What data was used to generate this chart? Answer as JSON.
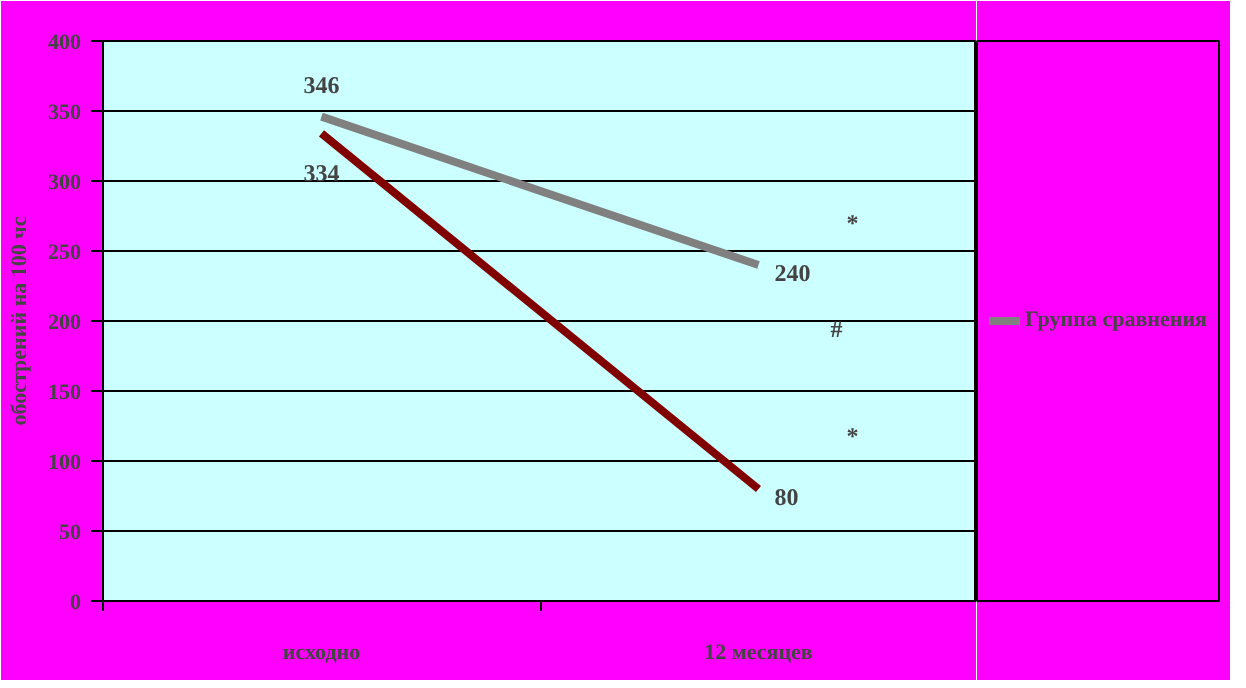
{
  "chart_data": {
    "type": "line",
    "ylabel": "обострений на 100 чс",
    "categories": [
      "исходно",
      "12 месяцев"
    ],
    "series": [
      {
        "color": "#800000",
        "values": [
          334,
          80
        ]
      },
      {
        "name": "Группа сравнения",
        "color": "#808080",
        "values": [
          346,
          240
        ]
      }
    ],
    "ylim": [
      0,
      400
    ],
    "yticks": [
      0,
      50,
      100,
      150,
      200,
      250,
      300,
      350,
      400
    ],
    "grid": "y",
    "legend": "right",
    "data_labels": true,
    "line_style": "solid",
    "annotations": [
      "*",
      "#",
      "*"
    ]
  }
}
